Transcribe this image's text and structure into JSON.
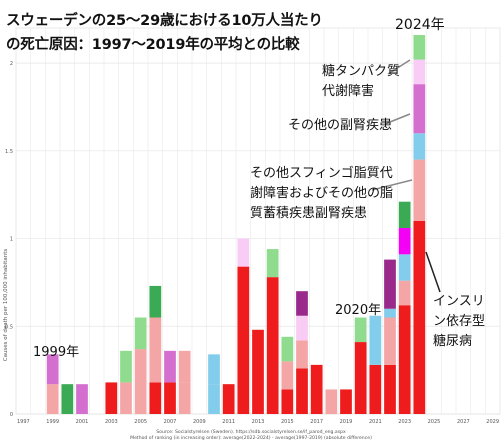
{
  "title": {
    "line1": "スウェーデンの25〜29歳における10万人当たり",
    "line2": "の死亡原因：1997〜2019年の平均との比較"
  },
  "annotations": {
    "year_2024": "2024年",
    "year_1999": "1999年",
    "year_2020": "2020年",
    "glyco_1": "糖タンパク質",
    "glyco_2": "代謝障害",
    "adrenal": "その他の副腎疾患",
    "sphingo_1": "その他スフィンゴ脂質代",
    "sphingo_2": "謝障害およびその他の脂",
    "sphingo_3": "質蓄積疾患副腎疾患",
    "insulin_1": "インスリ",
    "insulin_2": "ン依存型",
    "insulin_3": "糖尿病"
  },
  "source": {
    "line1": "Source: Socialstyrelsen (Sweden). https://sdb.socialstyrelsen.se/if_parod_eng.aspx",
    "line2": "Method of ranking (in increasing order): average(2022-2024) - average(1997-2019) (absolute difference)"
  },
  "chart_data": {
    "type": "bar",
    "stacked": true,
    "ylabel": "Causes of death per 100,000 inhabitants",
    "ylim": [
      0,
      2.2
    ],
    "y_ticks": [
      0,
      0.5,
      1,
      1.5,
      2
    ],
    "y_tick_labels": [
      "0",
      "0.5",
      "1",
      "1.5",
      "2"
    ],
    "x_range": [
      1997,
      2029
    ],
    "x_ticks": [
      1997,
      1999,
      2001,
      2003,
      2005,
      2007,
      2009,
      2011,
      2013,
      2015,
      2017,
      2019,
      2021,
      2023,
      2025,
      2027,
      2029
    ],
    "x_tick_labels": [
      "1997",
      "1999",
      "2001",
      "2003",
      "2005",
      "2007",
      "2009",
      "2011",
      "2013",
      "2015",
      "2017",
      "2019",
      "2021",
      "2023",
      "2025",
      "2027",
      "2029"
    ],
    "grid": true,
    "colors": {
      "red": "#ee1c1c",
      "pink": "#f4a6a6",
      "green": "#3aaa55",
      "lightgreen": "#8fdc8f",
      "orchid": "#d46fcf",
      "lightpink": "#f8ccf4",
      "skyblue": "#82cdeb",
      "purple": "#992a8c",
      "magenta": "#f400f4"
    },
    "bars": [
      {
        "x": 1999,
        "segments": [
          {
            "c": "pink",
            "v": 0.17
          },
          {
            "c": "orchid",
            "v": 0.17
          }
        ]
      },
      {
        "x": 2000,
        "segments": [
          {
            "c": "green",
            "v": 0.17
          }
        ]
      },
      {
        "x": 2001,
        "segments": [
          {
            "c": "orchid",
            "v": 0.17
          }
        ]
      },
      {
        "x": 2003,
        "segments": [
          {
            "c": "red",
            "v": 0.18
          }
        ]
      },
      {
        "x": 2004,
        "segments": [
          {
            "c": "pink",
            "v": 0.18
          },
          {
            "c": "lightgreen",
            "v": 0.18
          }
        ]
      },
      {
        "x": 2005,
        "segments": [
          {
            "c": "pink",
            "v": 0.37
          },
          {
            "c": "lightgreen",
            "v": 0.18
          }
        ]
      },
      {
        "x": 2006,
        "segments": [
          {
            "c": "red",
            "v": 0.18
          },
          {
            "c": "pink",
            "v": 0.37
          },
          {
            "c": "green",
            "v": 0.18
          }
        ]
      },
      {
        "x": 2007,
        "segments": [
          {
            "c": "red",
            "v": 0.18
          },
          {
            "c": "orchid",
            "v": 0.18
          }
        ]
      },
      {
        "x": 2008,
        "segments": [
          {
            "c": "pink",
            "v": 0.18
          },
          {
            "c": "pink",
            "v": 0.18
          }
        ]
      },
      {
        "x": 2010,
        "segments": [
          {
            "c": "skyblue",
            "v": 0.17
          },
          {
            "c": "skyblue",
            "v": 0.17
          }
        ]
      },
      {
        "x": 2011,
        "segments": [
          {
            "c": "red",
            "v": 0.17
          }
        ]
      },
      {
        "x": 2012,
        "segments": [
          {
            "c": "red",
            "v": 0.84
          },
          {
            "c": "lightpink",
            "v": 0.16
          }
        ]
      },
      {
        "x": 2013,
        "segments": [
          {
            "c": "red",
            "v": 0.48
          }
        ]
      },
      {
        "x": 2014,
        "segments": [
          {
            "c": "red",
            "v": 0.78
          },
          {
            "c": "lightgreen",
            "v": 0.16
          }
        ]
      },
      {
        "x": 2015,
        "segments": [
          {
            "c": "red",
            "v": 0.14
          },
          {
            "c": "pink",
            "v": 0.16
          },
          {
            "c": "lightgreen",
            "v": 0.14
          }
        ]
      },
      {
        "x": 2016,
        "segments": [
          {
            "c": "red",
            "v": 0.26
          },
          {
            "c": "pink",
            "v": 0.16
          },
          {
            "c": "lightpink",
            "v": 0.14
          },
          {
            "c": "purple",
            "v": 0.14
          }
        ]
      },
      {
        "x": 2017,
        "segments": [
          {
            "c": "red",
            "v": 0.28
          }
        ]
      },
      {
        "x": 2018,
        "segments": [
          {
            "c": "pink",
            "v": 0.14
          }
        ]
      },
      {
        "x": 2019,
        "segments": [
          {
            "c": "red",
            "v": 0.14
          }
        ]
      },
      {
        "x": 2020,
        "segments": [
          {
            "c": "red",
            "v": 0.41
          },
          {
            "c": "lightgreen",
            "v": 0.14
          }
        ]
      },
      {
        "x": 2021,
        "segments": [
          {
            "c": "red",
            "v": 0.28
          },
          {
            "c": "skyblue",
            "v": 0.28
          }
        ]
      },
      {
        "x": 2022,
        "segments": [
          {
            "c": "red",
            "v": 0.28
          },
          {
            "c": "pink",
            "v": 0.27
          },
          {
            "c": "skyblue",
            "v": 0.05
          },
          {
            "c": "purple",
            "v": 0.28
          }
        ]
      },
      {
        "x": 2023,
        "segments": [
          {
            "c": "red",
            "v": 0.62
          },
          {
            "c": "pink",
            "v": 0.14
          },
          {
            "c": "skyblue",
            "v": 0.15
          },
          {
            "c": "magenta",
            "v": 0.15
          },
          {
            "c": "green",
            "v": 0.15
          }
        ]
      },
      {
        "x": 2024,
        "segments": [
          {
            "c": "red",
            "v": 1.1
          },
          {
            "c": "pink",
            "v": 0.35
          },
          {
            "c": "skyblue",
            "v": 0.15
          },
          {
            "c": "orchid",
            "v": 0.28
          },
          {
            "c": "lightpink",
            "v": 0.14
          },
          {
            "c": "lightgreen",
            "v": 0.14
          }
        ]
      }
    ]
  }
}
